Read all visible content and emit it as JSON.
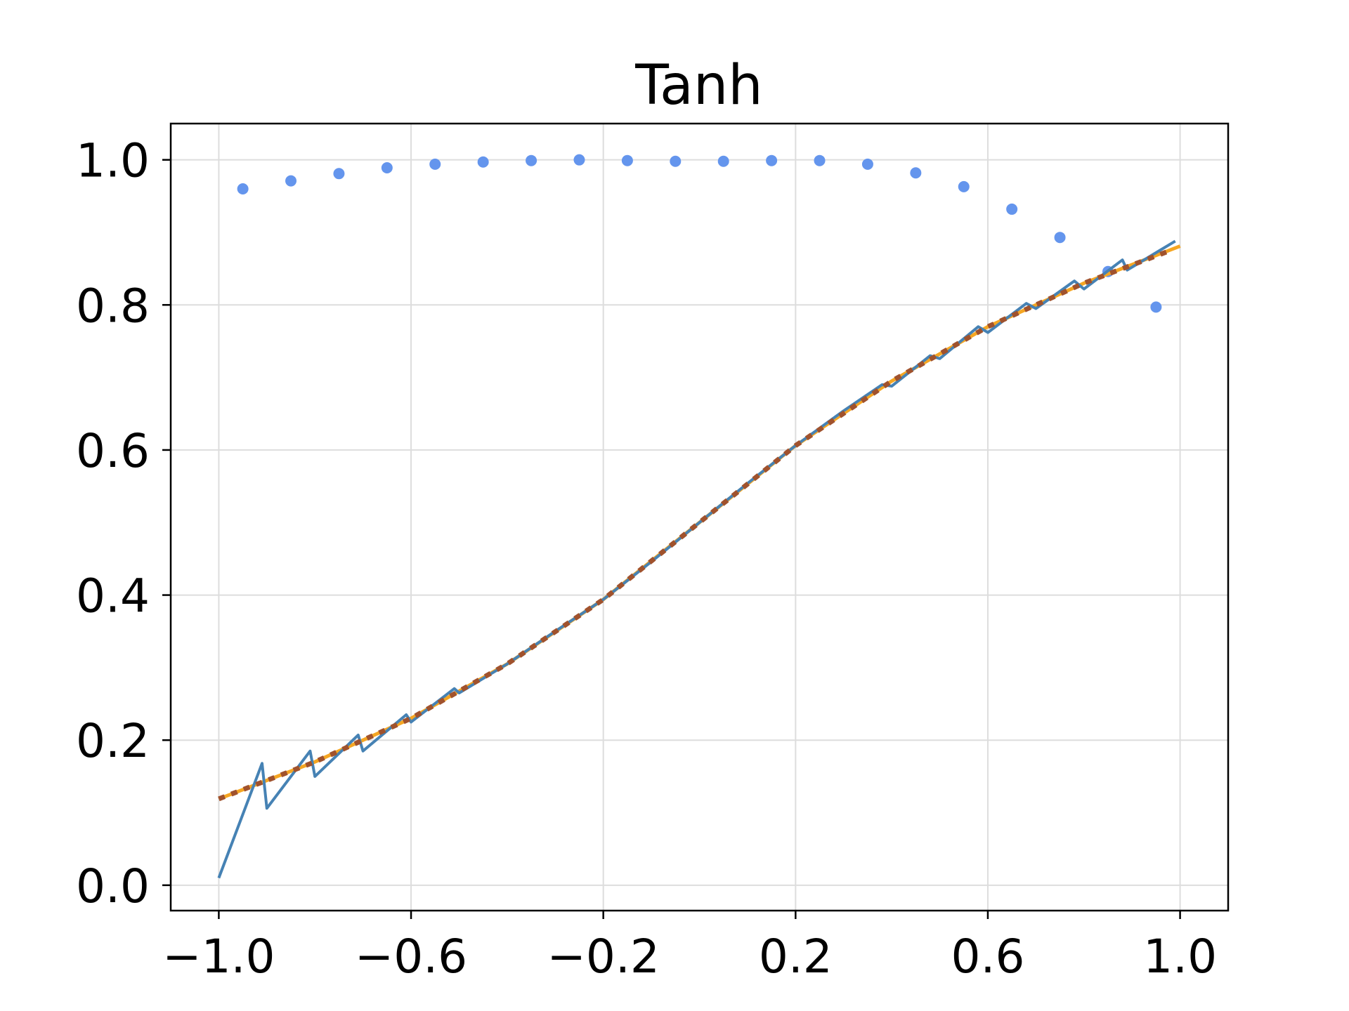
{
  "chart_data": {
    "type": "line",
    "title": "Tanh",
    "xlabel": "",
    "ylabel": "",
    "xlim": [
      -1.1,
      1.1
    ],
    "ylim": [
      -0.035,
      1.05
    ],
    "grid": true,
    "xticks": [
      -1.0,
      -0.6,
      -0.2,
      0.2,
      0.6,
      1.0
    ],
    "xtick_labels": [
      "−1.0",
      "−0.6",
      "−0.2",
      "0.2",
      "0.6",
      "1.0"
    ],
    "yticks": [
      0.0,
      0.2,
      0.4,
      0.6,
      0.8,
      1.0
    ],
    "ytick_labels": [
      "0.0",
      "0.2",
      "0.4",
      "0.6",
      "0.8",
      "1.0"
    ],
    "series": [
      {
        "style": "scatter",
        "color": "#6495ed",
        "x": [
          -0.95,
          -0.85,
          -0.75,
          -0.65,
          -0.55,
          -0.45,
          -0.35,
          -0.25,
          -0.15,
          -0.05,
          0.05,
          0.15,
          0.25,
          0.35,
          0.45,
          0.55,
          0.65,
          0.75,
          0.85,
          0.95
        ],
        "y": [
          0.96,
          0.971,
          0.981,
          0.989,
          0.994,
          0.997,
          0.999,
          1.0,
          0.999,
          0.998,
          0.998,
          0.999,
          0.999,
          0.994,
          0.982,
          0.963,
          0.932,
          0.893,
          0.846,
          0.797
        ]
      },
      {
        "style": "line",
        "color": "#f5a623",
        "x": [
          -1.0,
          -0.8,
          -0.6,
          -0.4,
          -0.2,
          0.0,
          0.2,
          0.4,
          0.6,
          0.8,
          1.0
        ],
        "y": [
          0.119,
          0.17,
          0.23,
          0.305,
          0.394,
          0.5,
          0.606,
          0.695,
          0.77,
          0.83,
          0.881
        ]
      },
      {
        "style": "line",
        "color": "#4682b4",
        "x": [
          -1.0,
          -0.91,
          -0.9,
          -0.81,
          -0.8,
          -0.71,
          -0.7,
          -0.61,
          -0.6,
          -0.51,
          -0.5,
          -0.4,
          -0.3,
          -0.2,
          -0.1,
          0.0,
          0.1,
          0.2,
          0.3,
          0.38,
          0.4,
          0.48,
          0.5,
          0.58,
          0.6,
          0.68,
          0.7,
          0.78,
          0.8,
          0.88,
          0.89,
          0.99
        ],
        "y": [
          0.01,
          0.168,
          0.106,
          0.185,
          0.15,
          0.207,
          0.185,
          0.235,
          0.225,
          0.271,
          0.265,
          0.305,
          0.35,
          0.394,
          0.446,
          0.5,
          0.554,
          0.606,
          0.654,
          0.69,
          0.688,
          0.73,
          0.726,
          0.77,
          0.762,
          0.802,
          0.795,
          0.833,
          0.822,
          0.862,
          0.848,
          0.888
        ]
      },
      {
        "style": "dotted",
        "color": "#a0522d",
        "x": [
          -1.0,
          -0.8,
          -0.6,
          -0.4,
          -0.2,
          0.0,
          0.2,
          0.4,
          0.6,
          0.8,
          0.98
        ],
        "y": [
          0.119,
          0.17,
          0.23,
          0.305,
          0.394,
          0.5,
          0.606,
          0.695,
          0.77,
          0.83,
          0.875
        ]
      }
    ]
  }
}
